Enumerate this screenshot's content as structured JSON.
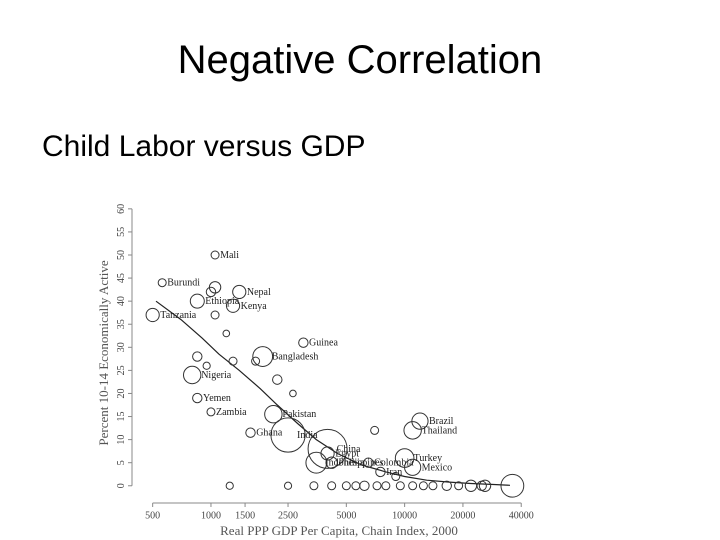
{
  "slide": {
    "title": "Negative Correlation",
    "subtitle": "Child Labor versus GDP"
  },
  "chart_data": {
    "type": "scatter",
    "title": "",
    "xlabel": "Real PPP GDP Per Capita, Chain Index, 2000",
    "ylabel": "Percent 10-14 Economically Active",
    "x_scale": "log",
    "xlim": [
      420,
      50000
    ],
    "ylim": [
      -2,
      63
    ],
    "x_ticks": [
      500,
      1000,
      1500,
      2500,
      5000,
      10000,
      20000,
      40000
    ],
    "x_tick_labels": [
      "500",
      "1000",
      "1500",
      "2500",
      "5000",
      "10000",
      "20000",
      "40000"
    ],
    "y_ticks": [
      0,
      5,
      10,
      15,
      20,
      25,
      30,
      35,
      40,
      45,
      50,
      55,
      60
    ],
    "y_tick_labels": [
      "0",
      "5",
      "10",
      "15",
      "20",
      "25",
      "30",
      "35",
      "40",
      "45",
      "50",
      "55",
      "60"
    ],
    "marker_color": "#333333",
    "curve_color": "#222222",
    "points": [
      {
        "x": 1050,
        "y": 50,
        "size": 1.5,
        "label": "Mali"
      },
      {
        "x": 560,
        "y": 44,
        "size": 1.5,
        "label": "Burundi"
      },
      {
        "x": 1050,
        "y": 43,
        "size": 3,
        "label": ""
      },
      {
        "x": 1000,
        "y": 42,
        "size": 2,
        "label": ""
      },
      {
        "x": 1400,
        "y": 42,
        "size": 4,
        "label": "Nepal"
      },
      {
        "x": 850,
        "y": 40,
        "size": 4.5,
        "label": "Ethiopia"
      },
      {
        "x": 1300,
        "y": 39,
        "size": 4,
        "label": "Kenya"
      },
      {
        "x": 500,
        "y": 37,
        "size": 4,
        "label": "Tanzania"
      },
      {
        "x": 1050,
        "y": 37,
        "size": 1.5,
        "label": ""
      },
      {
        "x": 1200,
        "y": 33,
        "size": 1,
        "label": ""
      },
      {
        "x": 3000,
        "y": 31,
        "size": 2,
        "label": "Guinea"
      },
      {
        "x": 1850,
        "y": 28,
        "size": 9,
        "label": "Bangladesh"
      },
      {
        "x": 850,
        "y": 28,
        "size": 2,
        "label": ""
      },
      {
        "x": 1300,
        "y": 27,
        "size": 1.5,
        "label": ""
      },
      {
        "x": 1700,
        "y": 27,
        "size": 1.5,
        "label": ""
      },
      {
        "x": 950,
        "y": 26,
        "size": 1.2,
        "label": ""
      },
      {
        "x": 800,
        "y": 24,
        "size": 7,
        "label": "Nigeria"
      },
      {
        "x": 2200,
        "y": 23,
        "size": 2,
        "label": ""
      },
      {
        "x": 850,
        "y": 19,
        "size": 2,
        "label": "Yemen"
      },
      {
        "x": 1000,
        "y": 16,
        "size": 1.5,
        "label": "Zambia"
      },
      {
        "x": 2100,
        "y": 15.5,
        "size": 7,
        "label": "Pakistan"
      },
      {
        "x": 1600,
        "y": 11.5,
        "size": 2,
        "label": "Ghana"
      },
      {
        "x": 2500,
        "y": 11,
        "size": 27,
        "label": "India"
      },
      {
        "x": 2650,
        "y": 20,
        "size": 1,
        "label": ""
      },
      {
        "x": 12000,
        "y": 14,
        "size": 6,
        "label": "Brazil"
      },
      {
        "x": 7000,
        "y": 12,
        "size": 1.5,
        "label": ""
      },
      {
        "x": 11000,
        "y": 12,
        "size": 7,
        "label": "Thailand"
      },
      {
        "x": 4000,
        "y": 8,
        "size": 35,
        "label": "China"
      },
      {
        "x": 4000,
        "y": 7,
        "size": 4,
        "label": "Egypt"
      },
      {
        "x": 3500,
        "y": 5,
        "size": 10,
        "label": "Indonesia"
      },
      {
        "x": 4200,
        "y": 5,
        "size": 3,
        "label": "Philippines"
      },
      {
        "x": 6500,
        "y": 5,
        "size": 2,
        "label": "Colombia"
      },
      {
        "x": 10000,
        "y": 6,
        "size": 8,
        "label": "Turkey"
      },
      {
        "x": 11000,
        "y": 4,
        "size": 6,
        "label": "Mexico"
      },
      {
        "x": 7500,
        "y": 3,
        "size": 2,
        "label": "Iran"
      },
      {
        "x": 9000,
        "y": 2,
        "size": 1.5,
        "label": ""
      },
      {
        "x": 1250,
        "y": 0,
        "size": 1.2,
        "label": ""
      },
      {
        "x": 2500,
        "y": 0,
        "size": 1.2,
        "label": ""
      },
      {
        "x": 3400,
        "y": 0,
        "size": 1.5,
        "label": ""
      },
      {
        "x": 4200,
        "y": 0,
        "size": 1.5,
        "label": ""
      },
      {
        "x": 5000,
        "y": 0,
        "size": 1.5,
        "label": ""
      },
      {
        "x": 5600,
        "y": 0,
        "size": 1.5,
        "label": ""
      },
      {
        "x": 6200,
        "y": 0,
        "size": 2,
        "label": ""
      },
      {
        "x": 7200,
        "y": 0,
        "size": 1.5,
        "label": ""
      },
      {
        "x": 8000,
        "y": 0,
        "size": 1.5,
        "label": ""
      },
      {
        "x": 9500,
        "y": 0,
        "size": 1.5,
        "label": ""
      },
      {
        "x": 11000,
        "y": 0,
        "size": 1.5,
        "label": ""
      },
      {
        "x": 12500,
        "y": 0,
        "size": 1.5,
        "label": ""
      },
      {
        "x": 14000,
        "y": 0,
        "size": 1.5,
        "label": ""
      },
      {
        "x": 16500,
        "y": 0,
        "size": 2,
        "label": ""
      },
      {
        "x": 19000,
        "y": 0,
        "size": 1.5,
        "label": ""
      },
      {
        "x": 22000,
        "y": 0,
        "size": 3,
        "label": ""
      },
      {
        "x": 25000,
        "y": 0,
        "size": 2,
        "label": ""
      },
      {
        "x": 26000,
        "y": 0,
        "size": 3,
        "label": ""
      },
      {
        "x": 36000,
        "y": 0,
        "size": 12,
        "label": ""
      }
    ],
    "fit_curve": {
      "x": [
        520,
        700,
        900,
        1100,
        1400,
        1800,
        2200,
        2800,
        3500,
        4500,
        6000,
        8000,
        10000,
        13000,
        17000,
        22000,
        28000,
        35000
      ],
      "y": [
        40,
        36,
        32,
        28.5,
        25,
        21,
        17.5,
        13.5,
        10,
        7,
        4.5,
        3,
        2,
        1.2,
        0.8,
        0.5,
        0.3,
        0.1
      ]
    }
  }
}
